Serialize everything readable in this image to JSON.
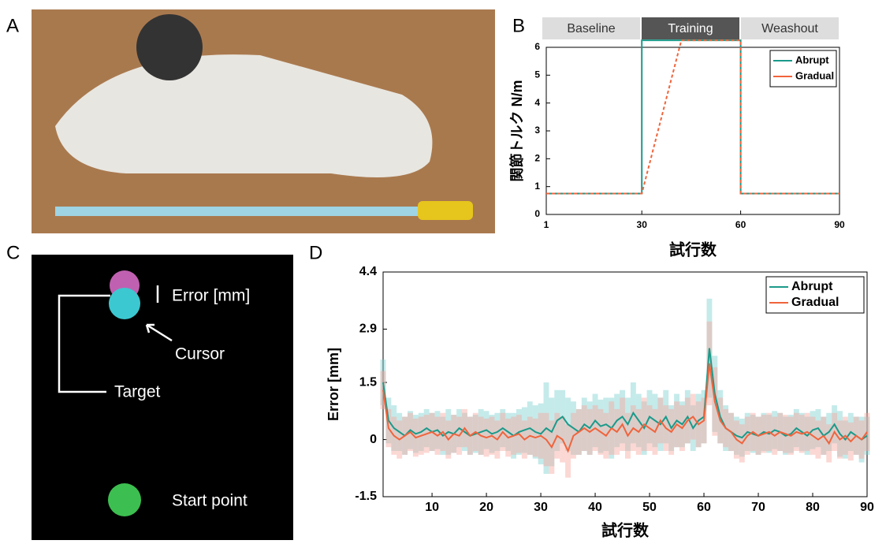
{
  "panels": [
    "A",
    "B",
    "C",
    "D"
  ],
  "diagram": {
    "error": "Error [mm]",
    "cursor": "Cursor",
    "target": "Target",
    "start": "Start point"
  },
  "chart_data": [
    {
      "type": "line",
      "phases": [
        "Baseline",
        "Training",
        "Weashout"
      ],
      "ylabel": "関節トルク N/m",
      "xlabel": "試行数",
      "xlim": [
        1,
        90
      ],
      "xticks": [
        1,
        30,
        60,
        90
      ],
      "ylim": [
        0,
        6
      ],
      "yticks": [
        0,
        1,
        2,
        3,
        4,
        5,
        6
      ],
      "series": [
        {
          "name": "Abrupt",
          "color": "#1a9a8a",
          "x": [
            1,
            30,
            30,
            60,
            60,
            90
          ],
          "values": [
            0.75,
            0.75,
            6.25,
            6.25,
            0.75,
            0.75
          ]
        },
        {
          "name": "Gradual",
          "color": "#f0643c",
          "x": [
            1,
            30,
            42,
            60,
            60,
            90
          ],
          "values": [
            0.75,
            0.75,
            6.25,
            6.25,
            0.75,
            0.75
          ]
        }
      ]
    },
    {
      "type": "band",
      "ylabel": "Error [mm]",
      "xlabel": "試行数",
      "xlim": [
        1,
        90
      ],
      "xticks": [
        10,
        20,
        30,
        40,
        50,
        60,
        70,
        80,
        90
      ],
      "ylim": [
        -1.5,
        4.4
      ],
      "yticks": [
        -1.5,
        0,
        1.5,
        2.9,
        4.4
      ],
      "x": [
        1,
        2,
        3,
        4,
        5,
        6,
        7,
        8,
        9,
        10,
        11,
        12,
        13,
        14,
        15,
        16,
        17,
        18,
        19,
        20,
        21,
        22,
        23,
        24,
        25,
        26,
        27,
        28,
        29,
        30,
        31,
        32,
        33,
        34,
        35,
        36,
        37,
        38,
        39,
        40,
        41,
        42,
        43,
        44,
        45,
        46,
        47,
        48,
        49,
        50,
        51,
        52,
        53,
        54,
        55,
        56,
        57,
        58,
        59,
        60,
        61,
        62,
        63,
        64,
        65,
        66,
        67,
        68,
        69,
        70,
        71,
        72,
        73,
        74,
        75,
        76,
        77,
        78,
        79,
        80,
        81,
        82,
        83,
        84,
        85,
        86,
        87,
        88,
        89,
        90
      ],
      "series": [
        {
          "name": "Abrupt",
          "color": "#1a9a8a",
          "band_color": "#7fd0d0",
          "values": [
            1.5,
            0.5,
            0.3,
            0.2,
            0.1,
            0.25,
            0.15,
            0.2,
            0.3,
            0.2,
            0.25,
            0.1,
            0.2,
            0.15,
            0.3,
            0.2,
            0.1,
            0.15,
            0.2,
            0.25,
            0.15,
            0.2,
            0.3,
            0.2,
            0.1,
            0.2,
            0.25,
            0.3,
            0.2,
            0.15,
            0.3,
            0.2,
            0.5,
            0.6,
            0.4,
            0.3,
            0.2,
            0.4,
            0.3,
            0.5,
            0.35,
            0.4,
            0.3,
            0.5,
            0.6,
            0.4,
            0.7,
            0.5,
            0.3,
            0.6,
            0.5,
            0.4,
            0.6,
            0.3,
            0.5,
            0.4,
            0.6,
            0.3,
            0.5,
            0.6,
            2.4,
            1.2,
            0.6,
            0.3,
            0.2,
            0.1,
            0.05,
            0.2,
            0.15,
            0.1,
            0.2,
            0.15,
            0.25,
            0.2,
            0.1,
            0.15,
            0.3,
            0.2,
            0.1,
            0.25,
            0.3,
            0.1,
            0.2,
            0.4,
            0.15,
            0,
            0.2,
            0.1,
            0,
            0.1
          ],
          "error": [
            0.6,
            0.6,
            0.6,
            0.5,
            0.5,
            0.5,
            0.5,
            0.5,
            0.5,
            0.5,
            0.5,
            0.5,
            0.6,
            0.5,
            0.5,
            0.5,
            0.5,
            0.5,
            0.6,
            0.5,
            0.5,
            0.5,
            0.5,
            0.5,
            0.6,
            0.6,
            0.6,
            0.7,
            0.7,
            0.8,
            1.2,
            0.9,
            0.8,
            0.7,
            0.7,
            0.7,
            0.6,
            0.7,
            0.7,
            0.7,
            0.7,
            0.7,
            0.8,
            0.7,
            0.7,
            0.7,
            0.8,
            0.7,
            0.7,
            0.7,
            0.7,
            0.7,
            0.7,
            0.6,
            0.7,
            0.6,
            0.7,
            0.6,
            0.7,
            0.7,
            1.3,
            1,
            0.7,
            0.6,
            0.5,
            0.5,
            0.5,
            0.5,
            0.5,
            0.5,
            0.5,
            0.5,
            0.5,
            0.5,
            0.5,
            0.5,
            0.5,
            0.5,
            0.5,
            0.5,
            0.5,
            0.5,
            0.5,
            0.5,
            0.6,
            0.5,
            0.5,
            0.5,
            0.6,
            0.5
          ]
        },
        {
          "name": "Gradual",
          "color": "#f0643c",
          "band_color": "#f6a8a0",
          "values": [
            1.3,
            0.3,
            0.1,
            0,
            0.1,
            0.2,
            0.05,
            0.1,
            0.15,
            0.2,
            0.1,
            0.2,
            0,
            0.15,
            0.1,
            0.3,
            0.1,
            0.2,
            0.1,
            0.05,
            0.1,
            0,
            0.2,
            0.05,
            0.1,
            0.15,
            0,
            0.1,
            0.05,
            0.1,
            0,
            -0.2,
            0.1,
            0,
            -0.3,
            0.1,
            0.2,
            0.3,
            0.2,
            0.3,
            0.2,
            0.1,
            0.3,
            0.2,
            0.4,
            0.1,
            0.3,
            0.2,
            0.4,
            0.3,
            0.2,
            0.5,
            0.3,
            0.2,
            0.4,
            0.3,
            0.5,
            0.6,
            0.4,
            0.5,
            2,
            1,
            0.5,
            0.3,
            0.2,
            0,
            -0.1,
            0.1,
            0.2,
            0.1,
            0.15,
            0.2,
            0.1,
            0.2,
            0.15,
            0.1,
            0.2,
            0.15,
            0.2,
            0.1,
            0,
            0.1,
            -0.1,
            0.2,
            0,
            0.1,
            -0.05,
            0.1,
            0,
            0.2
          ],
          "error": [
            0.5,
            0.5,
            0.5,
            0.5,
            0.5,
            0.5,
            0.5,
            0.5,
            0.5,
            0.5,
            0.5,
            0.5,
            0.5,
            0.5,
            0.5,
            0.5,
            0.5,
            0.5,
            0.5,
            0.5,
            0.5,
            0.5,
            0.5,
            0.5,
            0.5,
            0.5,
            0.5,
            0.5,
            0.5,
            0.6,
            0.7,
            0.7,
            0.6,
            0.6,
            0.7,
            0.6,
            0.6,
            0.6,
            0.6,
            0.6,
            0.6,
            0.6,
            0.7,
            0.6,
            0.7,
            0.6,
            0.6,
            0.6,
            0.7,
            0.6,
            0.6,
            0.6,
            0.6,
            0.6,
            0.6,
            0.6,
            0.6,
            0.6,
            0.6,
            0.6,
            1.1,
            0.9,
            0.6,
            0.5,
            0.5,
            0.5,
            0.5,
            0.5,
            0.5,
            0.5,
            0.5,
            0.5,
            0.5,
            0.5,
            0.5,
            0.5,
            0.5,
            0.5,
            0.5,
            0.5,
            0.5,
            0.5,
            0.5,
            0.5,
            0.5,
            0.5,
            0.5,
            0.5,
            0.5,
            0.5
          ]
        }
      ]
    }
  ]
}
